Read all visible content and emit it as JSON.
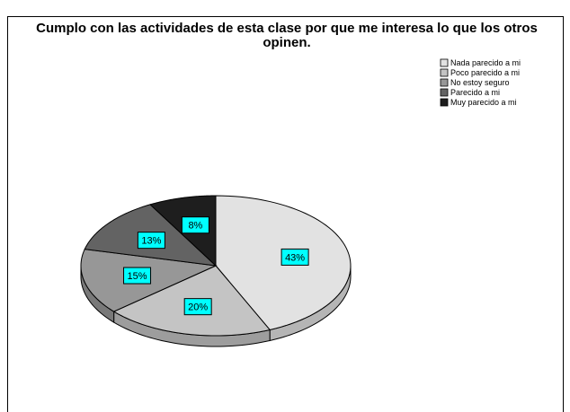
{
  "chart_data": {
    "type": "pie",
    "title": "Cumplo con  las actividades de esta clase por que me interesa lo que los otros opinen.",
    "categories": [
      "Nada parecido a mi",
      "Poco parecido a mi",
      "No estoy seguro",
      "Parecido a mi",
      "Muy parecido a mi"
    ],
    "values": [
      43,
      20,
      15,
      13,
      8
    ],
    "value_labels": [
      "43%",
      "20%",
      "15%",
      "13%",
      "8%"
    ],
    "colors": [
      "#e2e2e2",
      "#c4c4c4",
      "#979797",
      "#636363",
      "#1e1e1e"
    ],
    "legend": "top-right"
  }
}
